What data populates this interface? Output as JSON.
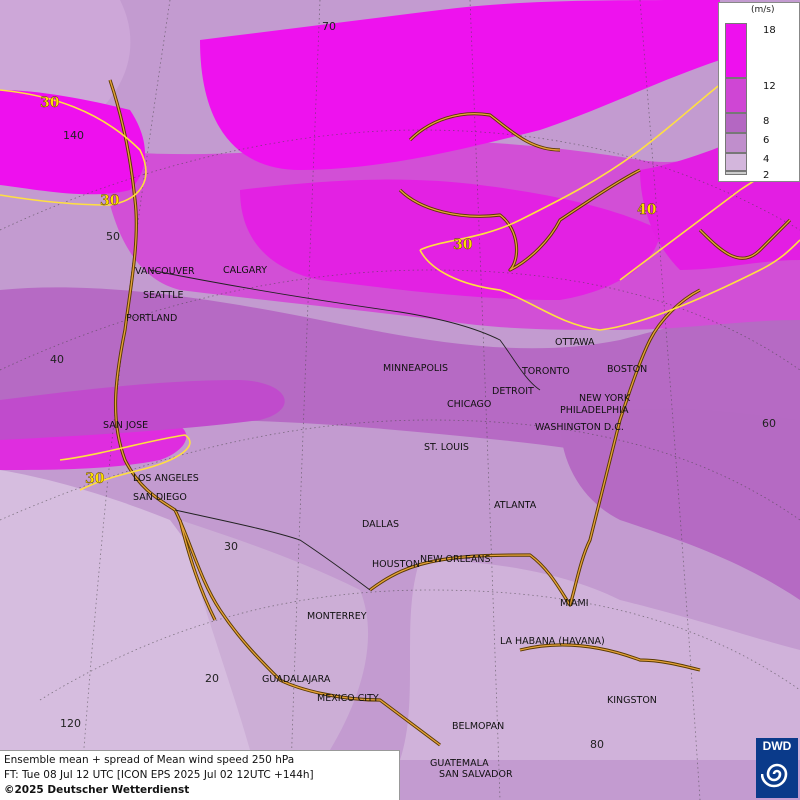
{
  "legend": {
    "unit": "(m/s)",
    "ticks": [
      "18",
      "12",
      "8",
      "6",
      "4",
      "2"
    ],
    "colors": [
      "#ee10ee",
      "#cf46d4",
      "#b467c2",
      "#c08ecc",
      "#d3b6dc",
      "#cccccc"
    ]
  },
  "contours": {
    "labels": [
      "30",
      "30",
      "30",
      "40"
    ],
    "color": "#ffe040"
  },
  "grid_labels": [
    "70",
    "140",
    "50",
    "40",
    "60",
    "30",
    "20",
    "120",
    "80"
  ],
  "cities": [
    "VANCOUVER",
    "CALGARY",
    "SEATTLE",
    "PORTLAND",
    "MINNEAPOLIS",
    "TORONTO",
    "OTTAWA",
    "BOSTON",
    "DETROIT",
    "NEW YORK",
    "CHICAGO",
    "PHILADELPHIA",
    "WASHINGTON D.C.",
    "SAN JOSE",
    "ST. LOUIS",
    "LOS ANGELES",
    "SAN DIEGO",
    "ATLANTA",
    "DALLAS",
    "HOUSTON",
    "NEW ORLEANS",
    "MIAMI",
    "MONTERREY",
    "LA HABANA (HAVANA)",
    "GUADALAJARA",
    "MEXICO CITY",
    "KINGSTON",
    "BELMOPAN",
    "GUATEMALA",
    "SAN SALVADOR"
  ],
  "footer": {
    "line1": "Ensemble mean + spread of Mean wind speed 250 hPa",
    "line2": "FT: Tue 08 Jul 12 UTC [ICON EPS 2025 Jul 02 12UTC +144h]",
    "line3": "©2025 Deutscher Wetterdienst"
  },
  "logo": {
    "text": "DWD"
  }
}
